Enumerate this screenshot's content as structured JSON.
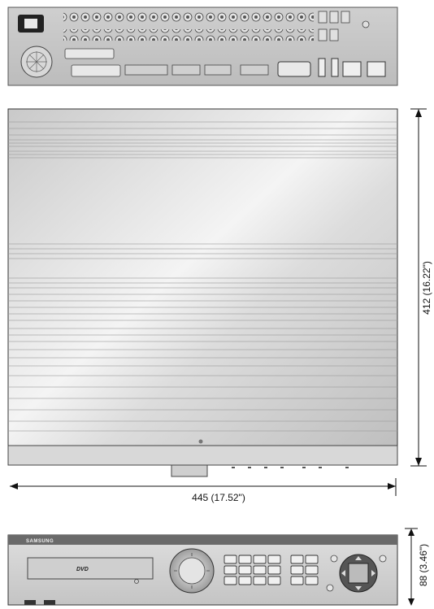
{
  "figure": {
    "dimensions": {
      "width_label": "445 (17.52\")",
      "depth_label": "412 (16.22\")",
      "height_label": "88 (3.46\")"
    },
    "front_panel": {
      "brand": "SAMSUNG",
      "disc_logo": "DVD"
    },
    "views": [
      "rear-panel",
      "top-view",
      "front-view"
    ],
    "colors": {
      "panel": "#d4d4d4",
      "panel_dark": "#7a7a7a",
      "line": "#111111"
    }
  }
}
